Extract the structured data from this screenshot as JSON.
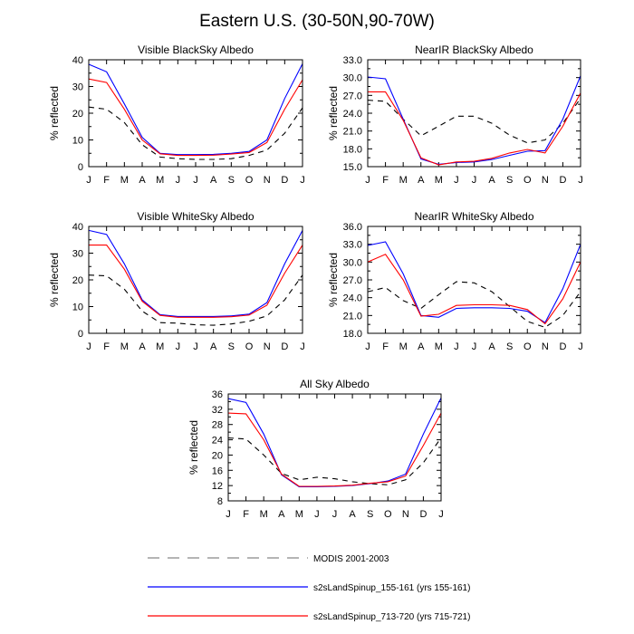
{
  "figure": {
    "title": "Eastern U.S. (30-50N,90-70W)",
    "series_styles": [
      {
        "color": "#000000",
        "dash": "6,5"
      },
      {
        "color": "#0000ff",
        "dash": ""
      },
      {
        "color": "#ff0000",
        "dash": ""
      }
    ]
  },
  "legend": [
    {
      "label": "MODIS 2001-2003",
      "color": "#000000",
      "style": "dashed"
    },
    {
      "label": "s2sLandSpinup_155-161 (yrs 155-161)",
      "color": "#0000ff",
      "style": "solid"
    },
    {
      "label": "s2sLandSpinup_713-720 (yrs 715-721)",
      "color": "#ff0000",
      "style": "solid"
    }
  ],
  "chart_data": [
    {
      "type": "line",
      "title": "Visible BlackSky Albedo",
      "xlabel": "",
      "ylabel": "% reflected",
      "categories": [
        "J",
        "F",
        "M",
        "A",
        "M",
        "J",
        "J",
        "A",
        "S",
        "O",
        "N",
        "D",
        "J"
      ],
      "ylim": [
        0,
        40
      ],
      "yticks": [
        "0",
        "10",
        "20",
        "30",
        "40"
      ],
      "series": [
        {
          "name": "MODIS 2001-2003",
          "values": [
            22.3,
            21.5,
            16.5,
            8.2,
            3.6,
            3.0,
            2.7,
            2.7,
            3.0,
            4.2,
            6.2,
            12.5,
            22.0
          ]
        },
        {
          "name": "s2sLandSpinup_155-161 (yrs 155-161)",
          "values": [
            38.3,
            35.5,
            23.5,
            11.0,
            5.0,
            4.5,
            4.5,
            4.6,
            5.0,
            5.7,
            10.0,
            25.5,
            38.5
          ]
        },
        {
          "name": "s2sLandSpinup_713-720 (yrs 715-721)",
          "values": [
            32.8,
            31.5,
            21.5,
            10.0,
            4.8,
            4.2,
            4.2,
            4.3,
            4.7,
            5.3,
            9.0,
            21.5,
            32.5
          ]
        }
      ]
    },
    {
      "type": "line",
      "title": "NearIR BlackSky Albedo",
      "xlabel": "",
      "ylabel": "% reflected",
      "categories": [
        "J",
        "F",
        "M",
        "A",
        "M",
        "J",
        "J",
        "A",
        "S",
        "O",
        "N",
        "D",
        "J"
      ],
      "ylim": [
        15,
        33
      ],
      "yticks": [
        "15.0",
        "18.0",
        "21.0",
        "24.0",
        "27.0",
        "30.0",
        "33.0"
      ],
      "series": [
        {
          "name": "MODIS 2001-2003",
          "values": [
            26.2,
            26.0,
            23.0,
            20.2,
            21.8,
            23.5,
            23.5,
            22.3,
            20.3,
            19.0,
            19.5,
            22.3,
            26.5
          ]
        },
        {
          "name": "s2sLandSpinup_155-161 (yrs 155-161)",
          "values": [
            30.1,
            29.8,
            23.0,
            16.3,
            15.4,
            15.7,
            15.8,
            16.2,
            16.9,
            17.6,
            17.7,
            23.0,
            30.3
          ]
        },
        {
          "name": "s2sLandSpinup_713-720 (yrs 715-721)",
          "values": [
            27.6,
            27.6,
            22.8,
            16.5,
            15.3,
            15.8,
            15.9,
            16.4,
            17.3,
            17.9,
            17.3,
            21.8,
            27.4
          ]
        }
      ]
    },
    {
      "type": "line",
      "title": "Visible WhiteSky Albedo",
      "xlabel": "",
      "ylabel": "% reflected",
      "categories": [
        "J",
        "F",
        "M",
        "A",
        "M",
        "J",
        "J",
        "A",
        "S",
        "O",
        "N",
        "D",
        "J"
      ],
      "ylim": [
        0,
        40
      ],
      "yticks": [
        "0",
        "10",
        "20",
        "30",
        "40"
      ],
      "series": [
        {
          "name": "MODIS 2001-2003",
          "values": [
            21.8,
            21.5,
            16.5,
            8.3,
            4.0,
            3.8,
            3.2,
            3.0,
            3.5,
            4.5,
            6.5,
            12.5,
            21.8
          ]
        },
        {
          "name": "s2sLandSpinup_155-161 (yrs 155-161)",
          "values": [
            38.5,
            37.0,
            26.0,
            12.5,
            7.0,
            6.3,
            6.3,
            6.3,
            6.5,
            7.2,
            11.5,
            26.0,
            38.5
          ]
        },
        {
          "name": "s2sLandSpinup_713-720 (yrs 715-721)",
          "values": [
            33.0,
            33.0,
            24.0,
            12.0,
            6.7,
            6.0,
            6.0,
            6.0,
            6.2,
            6.8,
            10.5,
            22.5,
            33.0
          ]
        }
      ]
    },
    {
      "type": "line",
      "title": "NearIR WhiteSky Albedo",
      "xlabel": "",
      "ylabel": "% reflected",
      "categories": [
        "J",
        "F",
        "M",
        "A",
        "M",
        "J",
        "J",
        "A",
        "S",
        "O",
        "N",
        "D",
        "J"
      ],
      "ylim": [
        18,
        36
      ],
      "yticks": [
        "18.0",
        "21.0",
        "24.0",
        "27.0",
        "30.0",
        "33.0",
        "36.0"
      ],
      "series": [
        {
          "name": "MODIS 2001-2003",
          "values": [
            25.0,
            25.7,
            23.5,
            22.2,
            24.5,
            26.7,
            26.5,
            25.0,
            22.5,
            20.0,
            19.0,
            21.0,
            25.0
          ]
        },
        {
          "name": "s2sLandSpinup_155-161 (yrs 155-161)",
          "values": [
            32.8,
            33.4,
            28.0,
            21.0,
            20.7,
            22.2,
            22.3,
            22.3,
            22.2,
            21.7,
            19.8,
            25.5,
            33.0
          ]
        },
        {
          "name": "s2sLandSpinup_713-720 (yrs 715-721)",
          "values": [
            30.0,
            31.3,
            27.0,
            20.9,
            21.2,
            22.7,
            22.8,
            22.8,
            22.7,
            22.0,
            19.6,
            23.8,
            30.0
          ]
        }
      ]
    },
    {
      "type": "line",
      "title": "All Sky Albedo",
      "xlabel": "",
      "ylabel": "% reflected",
      "categories": [
        "J",
        "F",
        "M",
        "A",
        "M",
        "J",
        "J",
        "A",
        "S",
        "O",
        "N",
        "D",
        "J"
      ],
      "ylim": [
        8,
        36
      ],
      "yticks": [
        "8",
        "12",
        "16",
        "20",
        "24",
        "28",
        "32",
        "36"
      ],
      "series": [
        {
          "name": "MODIS 2001-2003",
          "values": [
            24.5,
            24.2,
            20.0,
            15.2,
            13.5,
            14.2,
            13.8,
            13.0,
            12.5,
            12.2,
            13.5,
            18.0,
            24.5
          ]
        },
        {
          "name": "s2sLandSpinup_155-161 (yrs 155-161)",
          "values": [
            34.8,
            33.8,
            25.5,
            14.8,
            11.7,
            11.7,
            11.8,
            12.0,
            12.5,
            13.2,
            15.0,
            25.5,
            35.0
          ]
        },
        {
          "name": "s2sLandSpinup_713-720 (yrs 715-721)",
          "values": [
            31.0,
            30.8,
            24.0,
            15.0,
            11.8,
            11.8,
            11.9,
            12.1,
            12.6,
            13.0,
            14.5,
            22.5,
            31.0
          ]
        }
      ]
    }
  ]
}
